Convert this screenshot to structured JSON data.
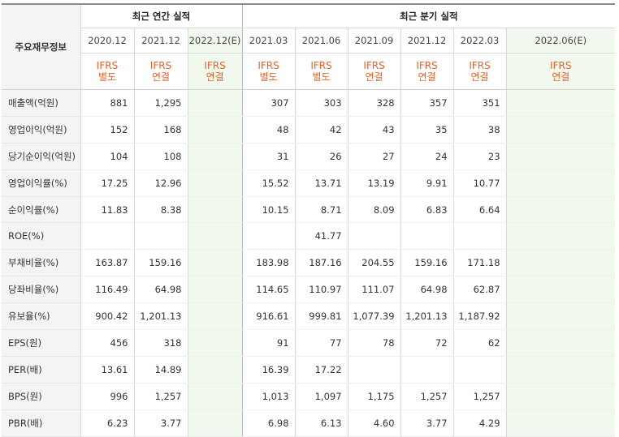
{
  "table": {
    "label_header": "주요재무정보",
    "group_annual": "최근 연간 실적",
    "group_quarterly": "최근 분기 실적",
    "periods": [
      {
        "date": "2020.12",
        "type1": "IFRS",
        "type2": "별도"
      },
      {
        "date": "2021.12",
        "type1": "IFRS",
        "type2": "연결"
      },
      {
        "date": "2022.12(E)",
        "type1": "IFRS",
        "type2": "연결"
      },
      {
        "date": "2021.03",
        "type1": "IFRS",
        "type2": "별도"
      },
      {
        "date": "2021.06",
        "type1": "IFRS",
        "type2": "별도"
      },
      {
        "date": "2021.09",
        "type1": "IFRS",
        "type2": "연결"
      },
      {
        "date": "2021.12",
        "type1": "IFRS",
        "type2": "연결"
      },
      {
        "date": "2022.03",
        "type1": "IFRS",
        "type2": "연결"
      },
      {
        "date": "2022.06(E)",
        "type1": "IFRS",
        "type2": "연결"
      }
    ],
    "rows": [
      {
        "label": "매출액(억원)",
        "values": [
          "881",
          "1,295",
          "",
          "307",
          "303",
          "328",
          "357",
          "351",
          ""
        ]
      },
      {
        "label": "영업이익(억원)",
        "values": [
          "152",
          "168",
          "",
          "48",
          "42",
          "43",
          "35",
          "38",
          ""
        ]
      },
      {
        "label": "당기순이익(억원)",
        "values": [
          "104",
          "108",
          "",
          "31",
          "26",
          "27",
          "24",
          "23",
          ""
        ]
      },
      {
        "label": "영업이익률(%)",
        "values": [
          "17.25",
          "12.96",
          "",
          "15.52",
          "13.71",
          "13.19",
          "9.91",
          "10.77",
          ""
        ]
      },
      {
        "label": "순이익률(%)",
        "values": [
          "11.83",
          "8.38",
          "",
          "10.15",
          "8.71",
          "8.09",
          "6.83",
          "6.64",
          ""
        ]
      },
      {
        "label": "ROE(%)",
        "values": [
          "",
          "",
          "",
          "",
          "41.77",
          "",
          "",
          "",
          ""
        ]
      },
      {
        "label": "부채비율(%)",
        "values": [
          "163.87",
          "159.16",
          "",
          "183.98",
          "187.16",
          "204.55",
          "159.16",
          "171.18",
          ""
        ]
      },
      {
        "label": "당좌비율(%)",
        "values": [
          "116.49",
          "64.98",
          "",
          "114.65",
          "110.97",
          "111.07",
          "64.98",
          "62.87",
          ""
        ]
      },
      {
        "label": "유보율(%)",
        "values": [
          "900.42",
          "1,201.13",
          "",
          "916.61",
          "999.81",
          "1,077.39",
          "1,201.13",
          "1,187.92",
          ""
        ]
      },
      {
        "label": "EPS(원)",
        "values": [
          "456",
          "318",
          "",
          "91",
          "77",
          "78",
          "72",
          "62",
          ""
        ]
      },
      {
        "label": "PER(배)",
        "values": [
          "13.61",
          "14.89",
          "",
          "16.39",
          "17.22",
          "",
          "",
          "",
          ""
        ]
      },
      {
        "label": "BPS(원)",
        "values": [
          "996",
          "1,257",
          "",
          "1,013",
          "1,097",
          "1,175",
          "1,257",
          "1,257",
          ""
        ]
      },
      {
        "label": "PBR(배)",
        "values": [
          "6.23",
          "3.77",
          "",
          "6.98",
          "6.13",
          "4.60",
          "3.77",
          "4.29",
          ""
        ]
      }
    ]
  }
}
